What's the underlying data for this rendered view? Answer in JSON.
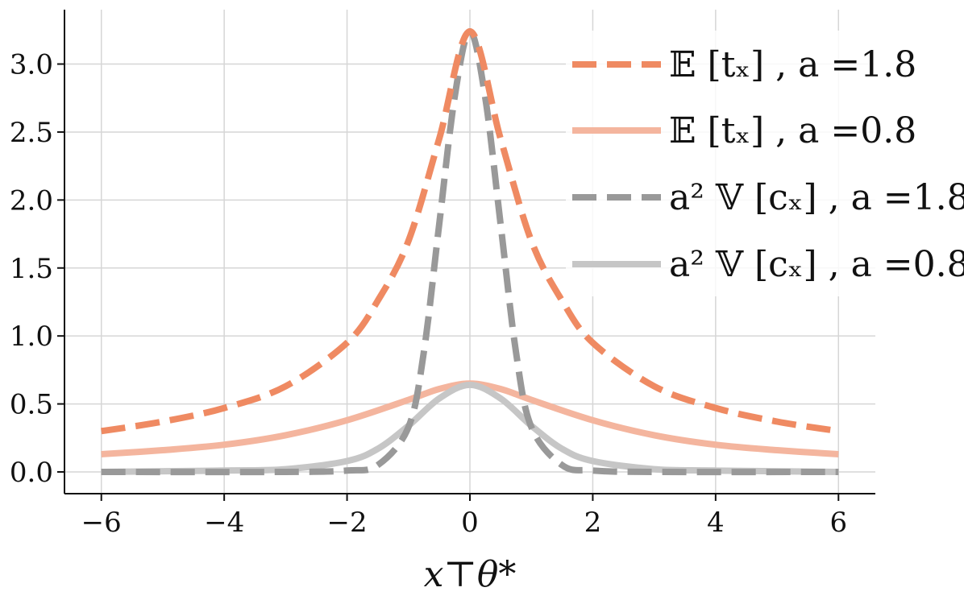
{
  "chart_data": {
    "type": "line",
    "xlabel": "x⊤θ*",
    "ylabel": "",
    "title": "",
    "xlim": [
      -6.6,
      6.6
    ],
    "ylim": [
      -0.16,
      3.4
    ],
    "xticks": [
      -6,
      -4,
      -2,
      0,
      2,
      4,
      6
    ],
    "xtick_labels": [
      "−6",
      "−4",
      "−2",
      "0",
      "2",
      "4",
      "6"
    ],
    "yticks": [
      0.0,
      0.5,
      1.0,
      1.5,
      2.0,
      2.5,
      3.0
    ],
    "ytick_labels": [
      "0.0",
      "0.5",
      "1.0",
      "1.5",
      "2.0",
      "2.5",
      "3.0"
    ],
    "grid": true,
    "legend_position": "top-right",
    "series": [
      {
        "name": "𝔼 [tₓ] , a =1.8",
        "color": "#ef8a62",
        "style": "dashed",
        "x": [
          -6,
          -5,
          -4,
          -3,
          -2,
          -1.5,
          -1,
          -0.5,
          0,
          0.5,
          1,
          1.5,
          2,
          3,
          4,
          5,
          6
        ],
        "y": [
          0.3,
          0.37,
          0.47,
          0.63,
          0.95,
          1.26,
          1.7,
          2.45,
          3.24,
          2.45,
          1.7,
          1.26,
          0.95,
          0.63,
          0.47,
          0.37,
          0.3
        ]
      },
      {
        "name": "𝔼 [tₓ] , a =0.8",
        "color": "#f4b59e",
        "style": "solid",
        "x": [
          -6,
          -5,
          -4,
          -3,
          -2,
          -1,
          -0.5,
          0,
          0.5,
          1,
          2,
          3,
          4,
          5,
          6
        ],
        "y": [
          0.13,
          0.16,
          0.2,
          0.27,
          0.38,
          0.53,
          0.61,
          0.65,
          0.61,
          0.53,
          0.38,
          0.27,
          0.2,
          0.16,
          0.13
        ]
      },
      {
        "name": "a² 𝕍 [cₓ] , a =1.8",
        "color": "#999999",
        "style": "dashed",
        "x": [
          -6,
          -3,
          -2,
          -1.5,
          -1,
          -0.75,
          -0.5,
          -0.25,
          0,
          0.25,
          0.5,
          0.75,
          1,
          1.5,
          2,
          3,
          6
        ],
        "y": [
          0.0,
          0.0,
          0.01,
          0.05,
          0.33,
          0.88,
          1.82,
          2.75,
          3.24,
          2.75,
          1.82,
          0.88,
          0.33,
          0.05,
          0.01,
          0.0,
          0.0
        ]
      },
      {
        "name": "a² 𝕍 [cₓ] , a =0.8",
        "color": "#c6c6c6",
        "style": "solid",
        "x": [
          -6,
          -4,
          -3,
          -2,
          -1.5,
          -1,
          -0.5,
          0,
          0.5,
          1,
          1.5,
          2,
          3,
          4,
          6
        ],
        "y": [
          0.0,
          0.01,
          0.02,
          0.08,
          0.17,
          0.34,
          0.54,
          0.64,
          0.54,
          0.34,
          0.17,
          0.08,
          0.02,
          0.01,
          0.0
        ]
      }
    ]
  }
}
